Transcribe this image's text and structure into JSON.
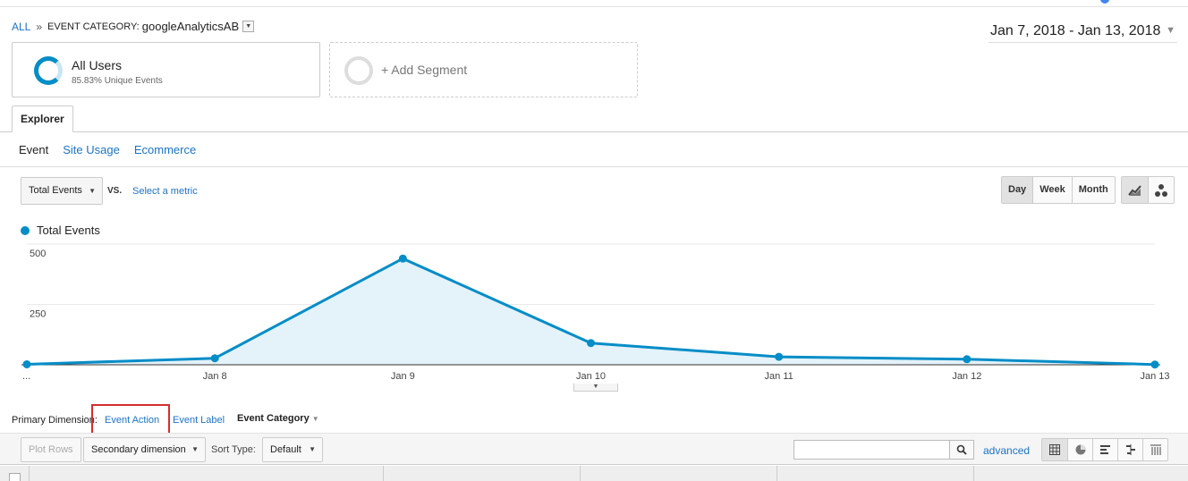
{
  "breadcrumb": {
    "all": "ALL",
    "separator": "»",
    "category_label": "EVENT CATEGORY:",
    "category_value": "googleAnalyticsAB"
  },
  "date_range": "Jan 7, 2018 - Jan 13, 2018",
  "segments": {
    "all_users_title": "All Users",
    "all_users_sub": "85.83% Unique Events",
    "add_segment": "+ Add Segment"
  },
  "tabs": {
    "explorer": "Explorer"
  },
  "subtabs": {
    "event": "Event",
    "site_usage": "Site Usage",
    "ecommerce": "Ecommerce"
  },
  "metric": {
    "selected": "Total Events",
    "vs": "VS.",
    "select_metric": "Select a metric"
  },
  "periods": [
    "Day",
    "Week",
    "Month"
  ],
  "chart_data": {
    "type": "area",
    "legend": [
      "Total Events"
    ],
    "categories": [
      "...",
      "Jan 8",
      "Jan 9",
      "Jan 10",
      "Jan 11",
      "Jan 12",
      "Jan 13"
    ],
    "series": [
      {
        "name": "Total Events",
        "values": [
          2,
          27,
          440,
          90,
          33,
          23,
          1
        ]
      }
    ],
    "yticks": [
      250,
      500
    ],
    "ylim": [
      0,
      500
    ],
    "color": "#058dc7",
    "fill": "#e4f2f9",
    "grid": true
  },
  "primary_dimension": {
    "label": "Primary Dimension:",
    "event_action": "Event Action",
    "event_label": "Event Label",
    "event_category": "Event Category"
  },
  "table_toolbar": {
    "plot_rows": "Plot Rows",
    "secondary_dimension": "Secondary dimension",
    "sort_type_label": "Sort Type:",
    "sort_default": "Default",
    "search_value": "",
    "advanced": "advanced"
  },
  "colors": {
    "accent": "#058dc7",
    "link": "#1a73c8",
    "highlight": "#d32f2f"
  }
}
